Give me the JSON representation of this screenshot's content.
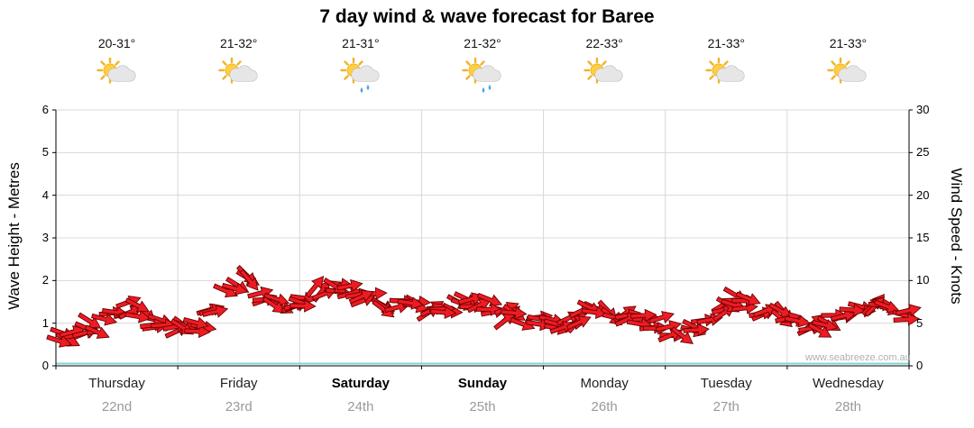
{
  "title": "7 day wind & wave forecast for Baree",
  "watermark": "www.seabreeze.com.au",
  "days": [
    {
      "name": "Thursday",
      "date": "22nd",
      "temp": "20-31°",
      "icon": "sun-cloud",
      "bold": false
    },
    {
      "name": "Friday",
      "date": "23rd",
      "temp": "21-32°",
      "icon": "sun-cloud",
      "bold": false
    },
    {
      "name": "Saturday",
      "date": "24th",
      "temp": "21-31°",
      "icon": "sun-cloud-rain",
      "bold": true
    },
    {
      "name": "Sunday",
      "date": "25th",
      "temp": "21-32°",
      "icon": "sun-cloud-rain",
      "bold": true
    },
    {
      "name": "Monday",
      "date": "26th",
      "temp": "22-33°",
      "icon": "sun-cloud",
      "bold": false
    },
    {
      "name": "Tuesday",
      "date": "27th",
      "temp": "21-33°",
      "icon": "sun-cloud",
      "bold": false
    },
    {
      "name": "Wednesday",
      "date": "28th",
      "temp": "21-33°",
      "icon": "sun-cloud",
      "bold": false
    }
  ],
  "colors": {
    "arrow_fill": "#ed1c24",
    "arrow_stroke": "#6b0000",
    "grid": "#d8d8d8",
    "axis": "#000000",
    "baseline": "#7fd6d6",
    "date_text": "#9a9a9a",
    "sun": "#ffcf3f",
    "sun_ray": "#f0b42a",
    "cloud": "#e6e6e6",
    "cloud_edge": "#b3b3b3",
    "rain": "#4aa6e8"
  },
  "chart_data": {
    "type": "wind-arrows",
    "title": "7 day wind & wave forecast for Baree",
    "categories": [
      "Thursday",
      "Friday",
      "Saturday",
      "Sunday",
      "Monday",
      "Tuesday",
      "Wednesday"
    ],
    "points_per_day": 8,
    "axes": {
      "left": {
        "label": "Wave Height - Metres",
        "min": 0,
        "max": 6,
        "tick": 1
      },
      "right": {
        "label": "Wind Speed - Knots",
        "min": 0,
        "max": 30,
        "tick": 5
      }
    },
    "grid": true,
    "legend": "none",
    "wind_speed_knots": [
      3.5,
      4.0,
      4.5,
      6.0,
      7.0,
      6.5,
      5.0,
      4.5,
      4.2,
      4.5,
      6.5,
      9.0,
      10.0,
      8.0,
      7.2,
      7.0,
      7.5,
      8.8,
      9.3,
      9.0,
      8.0,
      7.2,
      7.0,
      6.8,
      6.8,
      7.0,
      7.2,
      7.5,
      7.0,
      6.0,
      5.5,
      5.0,
      4.8,
      5.0,
      5.8,
      6.3,
      6.0,
      5.5,
      5.2,
      5.0,
      4.2,
      4.0,
      4.8,
      6.5,
      7.8,
      7.5,
      6.8,
      6.2,
      5.5,
      5.0,
      4.8,
      5.5,
      6.5,
      6.8,
      6.5,
      6.0
    ],
    "wind_direction_deg": [
      15,
      -20,
      40,
      10,
      -30,
      25,
      5,
      -15,
      30,
      0,
      -25,
      15,
      35,
      -10,
      20,
      -30,
      10,
      -35,
      20,
      0,
      -20,
      30,
      -10,
      15,
      -25,
      10,
      35,
      -15,
      5,
      -30,
      20,
      0,
      25,
      -10,
      -35,
      15,
      30,
      -20,
      10,
      -5,
      -15,
      20,
      0,
      -30,
      25,
      10,
      -20,
      35,
      5,
      -25,
      30,
      -10,
      15,
      -35,
      20,
      0
    ]
  }
}
